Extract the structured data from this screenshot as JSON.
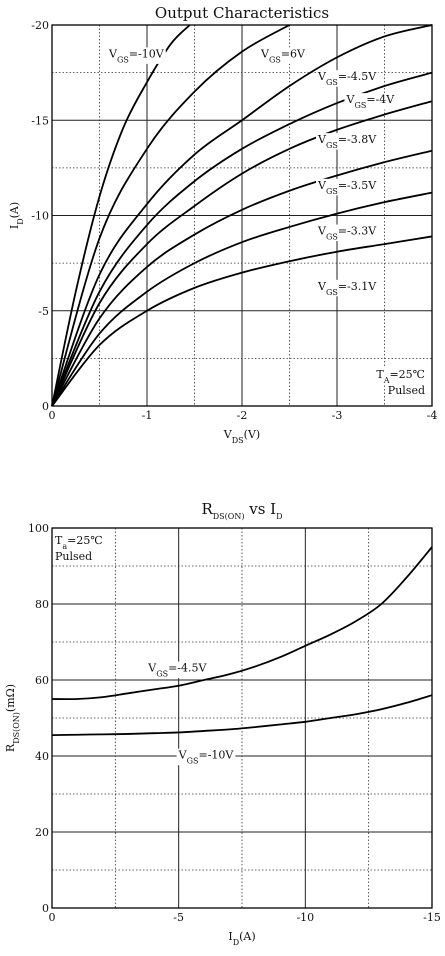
{
  "chart_data": [
    {
      "type": "line",
      "title": "Output Characteristics",
      "xlabel": {
        "main": "V",
        "sub": "DS",
        "unit": "(V)"
      },
      "ylabel": {
        "main": "I",
        "sub": "D",
        "unit": "(A)"
      },
      "xlim": [
        0,
        -4
      ],
      "ylim": [
        0,
        -20
      ],
      "xticks": [
        0,
        -1,
        -2,
        -3,
        -4
      ],
      "xtick_labels": [
        "0",
        "-1",
        "-2",
        "-3",
        "-4"
      ],
      "yticks": [
        0,
        -5,
        -10,
        -15,
        -20
      ],
      "ytick_labels": [
        "0",
        "-5",
        "-10",
        "-15",
        "-20"
      ],
      "grid": "solid major lines with dotted minor lines",
      "annotation": [
        "T",
        "A",
        "=25℃",
        "Pulsed"
      ],
      "series": [
        {
          "name": "V_GS=-10V",
          "label": [
            "V",
            "GS",
            "=-10V"
          ],
          "x": [
            0,
            -0.25,
            -0.5,
            -0.75,
            -1.0,
            -1.25,
            -1.45
          ],
          "y": [
            0,
            -6.0,
            -11.0,
            -14.6,
            -17.0,
            -19.0,
            -20.0
          ]
        },
        {
          "name": "V_GS=6V",
          "label": [
            "V",
            "GS",
            "=6V"
          ],
          "x": [
            0,
            -0.5,
            -1.0,
            -1.5,
            -2.0,
            -2.5
          ],
          "y": [
            0,
            -8.8,
            -13.5,
            -16.5,
            -18.6,
            -20.0
          ]
        },
        {
          "name": "V_GS=-4.5V",
          "label": [
            "V",
            "GS",
            "=-4.5V"
          ],
          "x": [
            0,
            -0.5,
            -1.0,
            -1.5,
            -2.0,
            -2.5,
            -3.0,
            -3.5,
            -4.0
          ],
          "y": [
            0,
            -6.9,
            -10.6,
            -13.2,
            -15.0,
            -16.8,
            -18.3,
            -19.4,
            -20.0
          ]
        },
        {
          "name": "V_GS=-4V",
          "label": [
            "V",
            "GS",
            "=-4V"
          ],
          "x": [
            0,
            -0.5,
            -1.0,
            -1.5,
            -2.0,
            -2.5,
            -3.0,
            -3.5,
            -4.0
          ],
          "y": [
            0,
            -6.0,
            -9.5,
            -11.8,
            -13.5,
            -14.8,
            -15.9,
            -16.8,
            -17.5
          ]
        },
        {
          "name": "V_GS=-3.8V",
          "label": [
            "V",
            "GS",
            "=-3.8V"
          ],
          "x": [
            0,
            -0.5,
            -1.0,
            -1.5,
            -2.0,
            -2.5,
            -3.0,
            -3.5,
            -4.0
          ],
          "y": [
            0,
            -5.4,
            -8.5,
            -10.5,
            -12.2,
            -13.5,
            -14.5,
            -15.3,
            -16.0
          ]
        },
        {
          "name": "V_GS=-3.5V",
          "label": [
            "V",
            "GS",
            "=-3.5V"
          ],
          "x": [
            0,
            -0.5,
            -1.0,
            -1.5,
            -2.0,
            -2.5,
            -3.0,
            -3.5,
            -4.0
          ],
          "y": [
            0,
            -4.6,
            -7.3,
            -9.0,
            -10.3,
            -11.3,
            -12.1,
            -12.8,
            -13.4
          ]
        },
        {
          "name": "V_GS=-3.3V",
          "label": [
            "V",
            "GS",
            "=-3.3V"
          ],
          "x": [
            0,
            -0.5,
            -1.0,
            -1.5,
            -2.0,
            -2.5,
            -3.0,
            -3.5,
            -4.0
          ],
          "y": [
            0,
            -3.8,
            -6.0,
            -7.5,
            -8.6,
            -9.4,
            -10.1,
            -10.7,
            -11.2
          ]
        },
        {
          "name": "V_GS=-3.1V",
          "label": [
            "V",
            "GS",
            "=-3.1V"
          ],
          "x": [
            0,
            -0.5,
            -1.0,
            -1.5,
            -2.0,
            -2.5,
            -3.0,
            -3.5,
            -4.0
          ],
          "y": [
            0,
            -3.2,
            -5.0,
            -6.2,
            -7.0,
            -7.6,
            -8.1,
            -8.5,
            -8.9
          ]
        }
      ]
    },
    {
      "type": "line",
      "title": {
        "main": "R",
        "sub": "DS(ON)",
        "rest": " vs I",
        "sub2": "D"
      },
      "xlabel": {
        "main": "I",
        "sub": "D",
        "unit": "(A)"
      },
      "ylabel": {
        "main": "R",
        "sub": "DS(ON)",
        "unit": "(mΩ)"
      },
      "xlim": [
        0,
        -15
      ],
      "ylim": [
        0,
        100
      ],
      "xticks": [
        0,
        -5,
        -10,
        -15
      ],
      "xtick_labels": [
        "0",
        "-5",
        "-10",
        "-15"
      ],
      "yticks": [
        0,
        20,
        40,
        60,
        80,
        100
      ],
      "ytick_labels": [
        "0",
        "20",
        "40",
        "60",
        "80",
        "100"
      ],
      "grid": "solid major lines with dotted minor lines",
      "annotation": [
        "T",
        "a",
        "=25℃",
        "Pulsed"
      ],
      "series": [
        {
          "name": "V_GS=-4.5V",
          "label": [
            "V",
            "GS",
            "=-4.5V"
          ],
          "x": [
            0,
            -1,
            -2,
            -3,
            -4,
            -5,
            -6,
            -7,
            -8,
            -9,
            -10,
            -11,
            -12,
            -13,
            -14,
            -15
          ],
          "y": [
            55,
            55,
            55.5,
            56.5,
            57.5,
            58.5,
            60,
            61.5,
            63.5,
            66,
            69,
            72,
            75.5,
            80,
            87,
            95
          ]
        },
        {
          "name": "V_GS=-10V",
          "label": [
            "V",
            "GS",
            "=-10V"
          ],
          "x": [
            0,
            -1,
            -2,
            -3,
            -4,
            -5,
            -6,
            -7,
            -8,
            -9,
            -10,
            -11,
            -12,
            -13,
            -14,
            -15
          ],
          "y": [
            45.5,
            45.6,
            45.7,
            45.8,
            46,
            46.2,
            46.6,
            47,
            47.6,
            48.3,
            49,
            50,
            51,
            52.3,
            54,
            56
          ]
        }
      ]
    }
  ]
}
